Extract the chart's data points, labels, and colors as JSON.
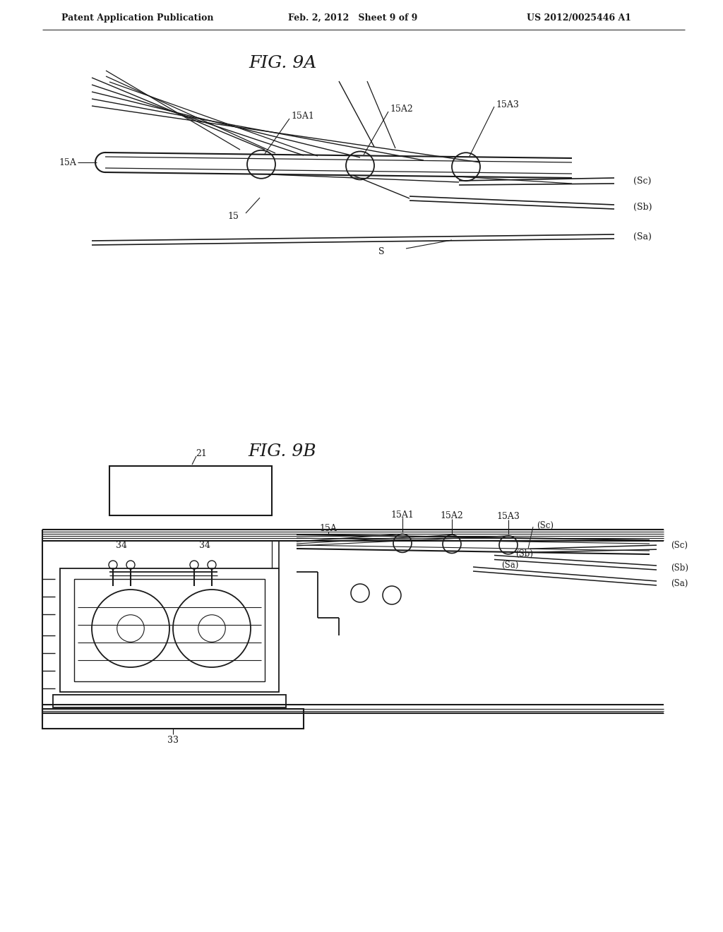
{
  "bg_color": "#ffffff",
  "header_left": "Patent Application Publication",
  "header_mid": "Feb. 2, 2012   Sheet 9 of 9",
  "header_right": "US 2012/0025446 A1",
  "fig9a_title": "FIG. 9A",
  "fig9b_title": "FIG. 9B"
}
